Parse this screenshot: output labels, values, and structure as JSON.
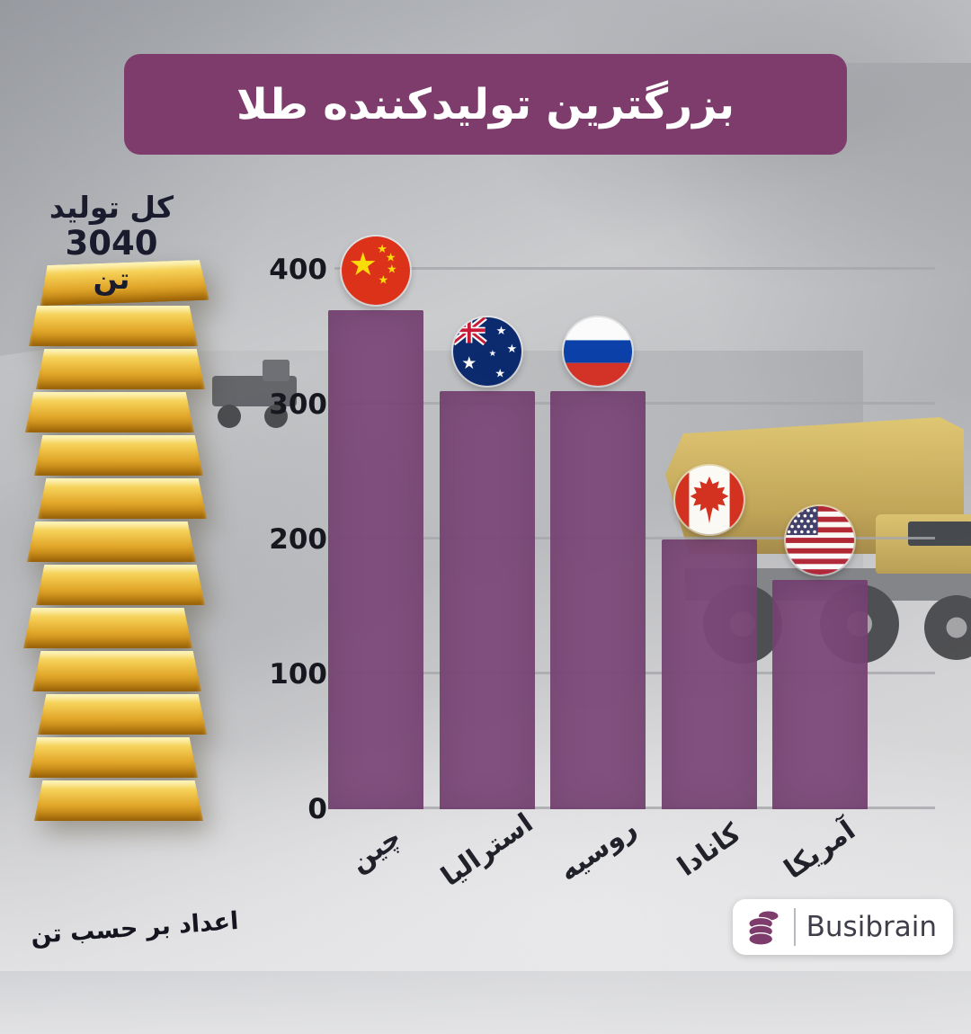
{
  "title": "بزرگترین تولیدکننده طلا",
  "total": {
    "line1": "کل تولید",
    "line2": "3040",
    "line3": "تن"
  },
  "footnote": "اعداد بر حسب تن",
  "brand": {
    "name": "Busibrain"
  },
  "colors": {
    "banner": "#7d3c6b",
    "bar": "#7d4879",
    "gold": "#e8b33a"
  },
  "chart_data": {
    "type": "bar",
    "title": "بزرگترین تولیدکننده طلا",
    "categories": [
      "چین",
      "استرالیا",
      "روسیه",
      "کانادا",
      "آمریکا"
    ],
    "categories_en": [
      "china",
      "australia",
      "russia",
      "canada",
      "usa"
    ],
    "values": [
      370,
      310,
      310,
      200,
      170
    ],
    "unit": "تن",
    "total": 3040,
    "ylim": [
      0,
      400
    ],
    "yticks": [
      0,
      100,
      200,
      300,
      400
    ],
    "grid": true,
    "legend": false,
    "bar_color": "#7d4879",
    "flags": [
      "china",
      "australia",
      "russia",
      "canada",
      "usa"
    ]
  }
}
